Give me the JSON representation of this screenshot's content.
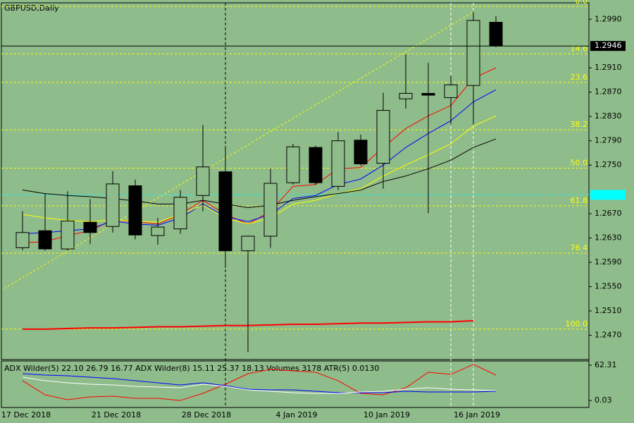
{
  "chart_data": [
    {
      "type": "candlestick",
      "title": "GBPUSD,Daily",
      "categories": [
        "17 Dec 2018",
        null,
        null,
        null,
        "21 Dec 2018",
        null,
        null,
        null,
        "28 Dec 2018",
        null,
        null,
        null,
        "4 Jan 2019",
        null,
        null,
        null,
        "10 Jan 2019",
        null,
        null,
        null,
        "16 Jan 2019",
        null
      ],
      "open": [
        1.2614,
        1.2642,
        1.2612,
        1.2656,
        1.2649,
        1.2716,
        1.2634,
        1.2645,
        1.27,
        1.2739,
        1.2609,
        1.2633,
        1.2721,
        1.2779,
        1.2715,
        1.2791,
        1.2753,
        1.2859,
        1.2868,
        1.2861,
        1.2881,
        1.2985
      ],
      "high": [
        1.2674,
        1.2703,
        1.2707,
        1.2694,
        1.274,
        1.2726,
        1.2663,
        1.2709,
        1.2816,
        1.2779,
        1.2634,
        1.2744,
        1.2785,
        1.2782,
        1.2804,
        1.28,
        1.2869,
        1.2932,
        1.2918,
        1.2897,
        1.3002,
        1.2995
      ],
      "low": [
        1.261,
        1.2609,
        1.2609,
        1.262,
        1.2639,
        1.2628,
        1.2619,
        1.2637,
        1.2674,
        1.2581,
        1.2442,
        1.2614,
        1.2718,
        1.2718,
        1.2709,
        1.2749,
        1.2711,
        1.2843,
        1.2671,
        1.2817,
        1.2817,
        1.2944
      ],
      "close": [
        1.2639,
        1.2612,
        1.2658,
        1.2639,
        1.2719,
        1.2635,
        1.2648,
        1.2697,
        1.2747,
        1.2609,
        1.2633,
        1.272,
        1.278,
        1.2721,
        1.279,
        1.2752,
        1.284,
        1.2868,
        1.2865,
        1.2882,
        1.2988,
        1.2946
      ],
      "up_color": "#8fbc8b",
      "down_color": "#000000",
      "series": [
        {
          "color": "#ff0000",
          "width": 1,
          "values": [
            1.2622,
            1.2624,
            1.2634,
            1.2642,
            1.266,
            1.2657,
            1.2653,
            1.2669,
            1.2692,
            1.2669,
            1.2653,
            1.2674,
            1.2715,
            1.2718,
            1.2744,
            1.2746,
            1.2779,
            1.281,
            1.2831,
            1.2848,
            1.2893,
            1.291
          ]
        },
        {
          "color": "#0000ff",
          "width": 1,
          "values": [
            1.2637,
            1.2639,
            1.2642,
            1.2645,
            1.2658,
            1.2653,
            1.2651,
            1.2663,
            1.2686,
            1.2665,
            1.2657,
            1.2669,
            1.2695,
            1.27,
            1.2718,
            1.2727,
            1.275,
            1.2779,
            1.2802,
            1.2823,
            1.2854,
            1.2874
          ]
        },
        {
          "color": "#ffff00",
          "width": 1,
          "values": [
            1.2669,
            1.2663,
            1.2659,
            1.2657,
            1.266,
            1.2658,
            1.2656,
            1.2669,
            1.2684,
            1.2663,
            1.2653,
            1.2663,
            1.2686,
            1.2692,
            1.2703,
            1.2711,
            1.2732,
            1.275,
            1.2767,
            1.2785,
            1.2814,
            1.2831
          ]
        },
        {
          "color": "#000000",
          "width": 1,
          "values": [
            1.2709,
            1.2703,
            1.27,
            1.2698,
            1.2695,
            1.2691,
            1.2686,
            1.2686,
            1.2692,
            1.2686,
            1.268,
            1.2684,
            1.2692,
            1.2698,
            1.2703,
            1.2709,
            1.2723,
            1.2732,
            1.2744,
            1.2758,
            1.2779,
            1.2793
          ]
        },
        {
          "color": "#ff0000",
          "width": 2,
          "values": [
            1.248,
            1.248,
            1.2481,
            1.2482,
            1.2482,
            1.2483,
            1.2484,
            1.2484,
            1.2485,
            1.2486,
            1.2486,
            1.2487,
            1.2488,
            1.2488,
            1.2489,
            1.249,
            1.249,
            1.2491,
            1.2492,
            1.2492,
            1.2494,
            null
          ]
        }
      ],
      "fib_color": "#ffff00",
      "fib_levels": [
        {
          "value": 1.3011,
          "label": "0.0"
        },
        {
          "value": 1.2933,
          "label": "14.6"
        },
        {
          "value": 1.2886,
          "label": "23.6"
        },
        {
          "value": 1.2808,
          "label": "38.2"
        },
        {
          "value": 1.2745,
          "label": "50.0"
        },
        {
          "value": 1.2683,
          "label": "61.8"
        },
        {
          "value": 1.2605,
          "label": "76.4"
        },
        {
          "value": 1.248,
          "label": "100.0"
        }
      ],
      "trend_line": [
        1.2547,
        1.3002
      ],
      "last_price": {
        "value": 1.2946,
        "label": "1.2946"
      },
      "cyan_level": 1.2701,
      "ylim": [
        1.243,
        1.3017
      ],
      "yticks": [
        {
          "value": 1.299,
          "label": "1.2990"
        },
        {
          "value": 1.291,
          "label": "1.2910"
        },
        {
          "value": 1.287,
          "label": "1.2870"
        },
        {
          "value": 1.283,
          "label": "1.2830"
        },
        {
          "value": 1.279,
          "label": "1.2790"
        },
        {
          "value": 1.275,
          "label": "1.2750"
        },
        {
          "value": 1.267,
          "label": "1.2670"
        },
        {
          "value": 1.263,
          "label": "1.2630"
        },
        {
          "value": 1.259,
          "label": "1.2590"
        },
        {
          "value": 1.255,
          "label": "1.2550"
        },
        {
          "value": 1.251,
          "label": "1.2510"
        },
        {
          "value": 1.247,
          "label": "1.2470"
        }
      ]
    },
    {
      "type": "line",
      "title": "ADX Wilder(5) 22.10 26.79 16.77 ADX Wilder(8) 15.11 25.37 18.13 Volumes 3178 ATR(5) 0.0130",
      "series": [
        {
          "color": "#ff0000",
          "values": [
            34.9,
            10.0,
            1.3,
            6.3,
            7.5,
            3.8,
            3.8,
            0.0,
            12.5,
            28.7,
            47.4,
            54.8,
            52.3,
            49.9,
            34.9,
            12.5,
            10.0,
            22.4,
            49.9,
            46.1,
            63.6,
            44.9
          ]
        },
        {
          "color": "#0000ff",
          "values": [
            47.4,
            44.9,
            43.6,
            41.1,
            38.6,
            34.9,
            31.2,
            27.4,
            31.2,
            26.2,
            19.9,
            18.7,
            18.7,
            16.2,
            13.7,
            13.7,
            13.7,
            16.2,
            15.0,
            15.0,
            15.0,
            16.2
          ]
        },
        {
          "color": "#ffffff",
          "values": [
            41.1,
            34.9,
            31.2,
            28.7,
            27.4,
            24.9,
            23.7,
            22.4,
            28.7,
            24.9,
            18.7,
            16.2,
            13.7,
            12.5,
            12.5,
            15.0,
            16.2,
            19.9,
            22.4,
            19.9,
            18.7,
            17.5
          ]
        }
      ],
      "ylim": [
        -12.4,
        69.8
      ],
      "yticks": [
        62.31,
        0.03
      ]
    }
  ]
}
